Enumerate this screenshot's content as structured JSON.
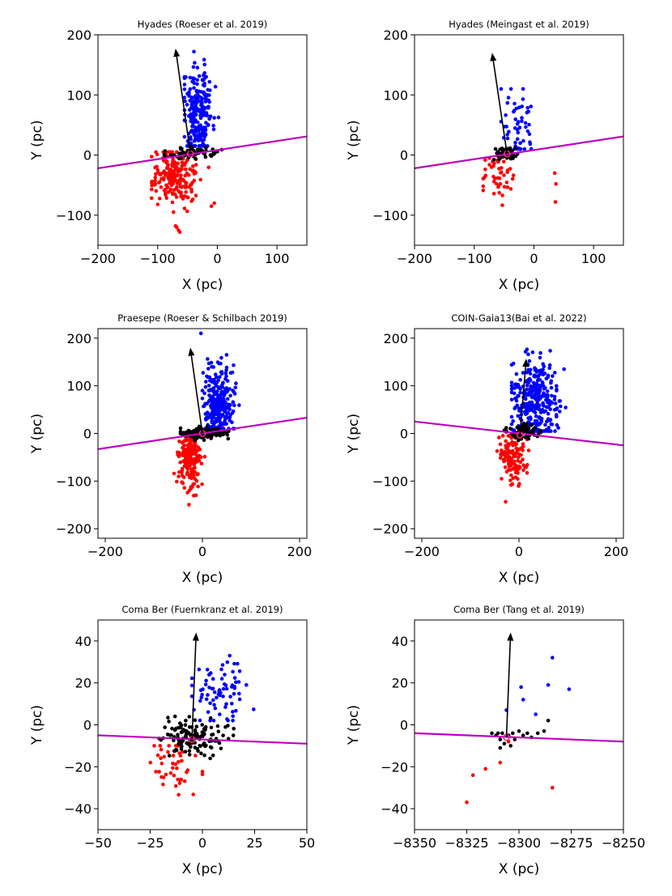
{
  "figure": {
    "colors": {
      "upper": "#0000ff",
      "lower": "#ff0000",
      "core": "#000000",
      "plane_line": "#bf00bf",
      "arrow": "#000000",
      "center_marker": "#e8306e"
    }
  },
  "chart_data": [
    {
      "type": "scatter",
      "title": "Hyades (Roeser et al. 2019)",
      "xlabel": "X (pc)",
      "ylabel": "Y (pc)",
      "xlim": [
        -200,
        150
      ],
      "ylim": [
        -150,
        200
      ],
      "xticks": [
        -200,
        -100,
        0,
        100
      ],
      "yticks": [
        -100,
        0,
        100,
        200
      ],
      "xtick_labels": [
        "−200",
        "−100",
        "0",
        "100"
      ],
      "ytick_labels": [
        "−100",
        "0",
        "100",
        "200"
      ],
      "center": [
        -45,
        2
      ],
      "arrow_tip": [
        -70,
        177
      ],
      "plane_line": {
        "x": [
          -200,
          150
        ],
        "y": [
          -22,
          31
        ]
      },
      "series": [
        {
          "name": "upper",
          "color": "#0000ff",
          "n": 230,
          "x_mean": -32,
          "x_sd": 13,
          "y_mean": 72,
          "y_sd": 38,
          "x_range": [
            -55,
            15
          ],
          "y_range": [
            15,
            172
          ]
        },
        {
          "name": "lower",
          "color": "#ff0000",
          "n": 210,
          "x_mean": -72,
          "x_sd": 18,
          "y_mean": -35,
          "y_sd": 22,
          "x_range": [
            -110,
            -5
          ],
          "y_range": [
            -95,
            5
          ],
          "outliers": [
            [
              -68,
              -120
            ],
            [
              -65,
              -125
            ],
            [
              -70,
              -118
            ],
            [
              -63,
              -128
            ],
            [
              -10,
              -85
            ],
            [
              -5,
              -80
            ]
          ]
        },
        {
          "name": "core",
          "color": "#000000",
          "n": 70,
          "x_mean": -40,
          "x_sd": 20,
          "y_mean": 5,
          "y_sd": 5,
          "x_range": [
            -95,
            15
          ],
          "y_range": [
            -6,
            22
          ]
        }
      ]
    },
    {
      "type": "scatter",
      "title": "Hyades (Meingast et al. 2019)",
      "xlabel": "X (pc)",
      "ylabel": "Y (pc)",
      "xlim": [
        -200,
        150
      ],
      "ylim": [
        -150,
        200
      ],
      "xticks": [
        -200,
        -100,
        0,
        100
      ],
      "yticks": [
        -100,
        0,
        100,
        200
      ],
      "xtick_labels": [
        "−200",
        "−100",
        "0",
        "100"
      ],
      "ytick_labels": [
        "−100",
        "0",
        "100",
        "200"
      ],
      "center": [
        -45,
        2
      ],
      "arrow_tip": [
        -70,
        170
      ],
      "plane_line": {
        "x": [
          -200,
          150
        ],
        "y": [
          -22,
          31
        ]
      },
      "series": [
        {
          "name": "upper",
          "color": "#0000ff",
          "n": 60,
          "x_mean": -28,
          "x_sd": 12,
          "y_mean": 45,
          "y_sd": 30,
          "x_range": [
            -55,
            0
          ],
          "y_range": [
            10,
            110
          ]
        },
        {
          "name": "lower",
          "color": "#ff0000",
          "n": 45,
          "x_mean": -62,
          "x_sd": 14,
          "y_mean": -35,
          "y_sd": 22,
          "x_range": [
            -85,
            -30
          ],
          "y_range": [
            -85,
            -5
          ],
          "outliers": [
            [
              35,
              -30
            ],
            [
              37,
              -48
            ],
            [
              36,
              -78
            ]
          ]
        },
        {
          "name": "core",
          "color": "#000000",
          "n": 60,
          "x_mean": -47,
          "x_sd": 9,
          "y_mean": 3,
          "y_sd": 5,
          "x_range": [
            -70,
            15
          ],
          "y_range": [
            -10,
            18
          ]
        }
      ]
    },
    {
      "type": "scatter",
      "title": "Praesepe (Roeser & Schilbach 2019)",
      "xlabel": "X (pc)",
      "ylabel": "Y (pc)",
      "xlim": [
        -215,
        215
      ],
      "ylim": [
        -220,
        220
      ],
      "xticks": [
        -200,
        0,
        200
      ],
      "yticks": [
        -200,
        -100,
        0,
        100,
        200
      ],
      "xtick_labels": [
        "−200",
        "0",
        "200"
      ],
      "ytick_labels": [
        "−200",
        "−100",
        "0",
        "100",
        "200"
      ],
      "center": [
        0,
        0
      ],
      "arrow_tip": [
        -25,
        180
      ],
      "plane_line": {
        "x": [
          -215,
          215
        ],
        "y": [
          -33,
          33
        ]
      },
      "series": [
        {
          "name": "upper",
          "color": "#0000ff",
          "n": 300,
          "x_mean": 33,
          "x_sd": 14,
          "y_mean": 62,
          "y_sd": 35,
          "x_range": [
            0,
            80
          ],
          "y_range": [
            10,
            165
          ],
          "outliers": [
            [
              -3,
              210
            ]
          ]
        },
        {
          "name": "lower",
          "color": "#ff0000",
          "n": 160,
          "x_mean": -25,
          "x_sd": 12,
          "y_mean": -58,
          "y_sd": 32,
          "x_range": [
            -60,
            5
          ],
          "y_range": [
            -172,
            -5
          ]
        },
        {
          "name": "core",
          "color": "#000000",
          "n": 180,
          "x_mean": 0,
          "x_sd": 22,
          "y_mean": 0,
          "y_sd": 5,
          "x_range": [
            -45,
            60
          ],
          "y_range": [
            -14,
            16
          ]
        }
      ]
    },
    {
      "type": "scatter",
      "title": "COIN-Gaia13(Bai et al. 2022)",
      "xlabel": "X (pc)",
      "ylabel": "Y (pc)",
      "xlim": [
        -215,
        215
      ],
      "ylim": [
        -220,
        220
      ],
      "xticks": [
        -200,
        0,
        200
      ],
      "yticks": [
        -200,
        -100,
        0,
        100,
        200
      ],
      "xtick_labels": [
        "−200",
        "0",
        "200"
      ],
      "ytick_labels": [
        "−200",
        "−100",
        "0",
        "100",
        "200"
      ],
      "center": [
        2,
        -3
      ],
      "arrow_tip": [
        15,
        157
      ],
      "plane_line": {
        "x": [
          -215,
          215
        ],
        "y": [
          25,
          -25
        ]
      },
      "series": [
        {
          "name": "upper",
          "color": "#0000ff",
          "n": 320,
          "x_mean": 35,
          "x_sd": 25,
          "y_mean": 70,
          "y_sd": 42,
          "x_range": [
            -15,
            115
          ],
          "y_range": [
            5,
            205
          ]
        },
        {
          "name": "lower",
          "color": "#ff0000",
          "n": 130,
          "x_mean": -10,
          "x_sd": 14,
          "y_mean": -45,
          "y_sd": 30,
          "x_range": [
            -45,
            20
          ],
          "y_range": [
            -148,
            -5
          ]
        },
        {
          "name": "core",
          "color": "#000000",
          "n": 60,
          "x_mean": 8,
          "x_sd": 16,
          "y_mean": 2,
          "y_sd": 8,
          "x_range": [
            -30,
            45
          ],
          "y_range": [
            -15,
            20
          ]
        }
      ]
    },
    {
      "type": "scatter",
      "title": "Coma Ber (Fuernkranz et al. 2019)",
      "xlabel": "X (pc)",
      "ylabel": "Y (pc)",
      "xlim": [
        -50,
        50
      ],
      "ylim": [
        -50,
        50
      ],
      "xticks": [
        -50,
        -25,
        0,
        25,
        50
      ],
      "yticks": [
        -40,
        -20,
        0,
        20,
        40
      ],
      "xtick_labels": [
        "−50",
        "−25",
        "0",
        "25",
        "50"
      ],
      "ytick_labels": [
        "−40",
        "−20",
        "0",
        "20",
        "40"
      ],
      "center": [
        -5,
        -7
      ],
      "arrow_tip": [
        -3,
        44
      ],
      "plane_line": {
        "x": [
          -50,
          50
        ],
        "y": [
          -5,
          -9
        ]
      },
      "series": [
        {
          "name": "upper",
          "color": "#0000ff",
          "n": 75,
          "x_mean": 8,
          "x_sd": 8,
          "y_mean": 17,
          "y_sd": 8,
          "x_range": [
            -5,
            25
          ],
          "y_range": [
            2,
            33
          ]
        },
        {
          "name": "lower",
          "color": "#ff0000",
          "n": 45,
          "x_mean": -15,
          "x_sd": 6,
          "y_mean": -20,
          "y_sd": 7,
          "x_range": [
            -27,
            0
          ],
          "y_range": [
            -34,
            -10
          ]
        },
        {
          "name": "core",
          "color": "#000000",
          "n": 140,
          "x_mean": -5,
          "x_sd": 8,
          "y_mean": -5,
          "y_sd": 5,
          "x_range": [
            -25,
            15
          ],
          "y_range": [
            -18,
            4
          ]
        }
      ]
    },
    {
      "type": "scatter",
      "title": "Coma Ber (Tang et al. 2019)",
      "xlabel": "X (pc)",
      "ylabel": "Y (pc)",
      "xlim": [
        -8350,
        -8250
      ],
      "ylim": [
        -50,
        50
      ],
      "xticks": [
        -8350,
        -8325,
        -8300,
        -8275,
        -8250
      ],
      "yticks": [
        -40,
        -20,
        0,
        20,
        40
      ],
      "xtick_labels": [
        "−8350",
        "−8325",
        "−8300",
        "−8275",
        "−8250"
      ],
      "ytick_labels": [
        "−40",
        "−20",
        "0",
        "20",
        "40"
      ],
      "center": [
        -8306,
        -6
      ],
      "arrow_tip": [
        -8304,
        44
      ],
      "plane_line": {
        "x": [
          -8350,
          -8250
        ],
        "y": [
          -4,
          -8
        ]
      },
      "series": [
        {
          "name": "upper",
          "color": "#0000ff",
          "points": [
            [
              -8306,
              7
            ],
            [
              -8299,
              18
            ],
            [
              -8298,
              12
            ],
            [
              -8292,
              5
            ],
            [
              -8286,
              19
            ],
            [
              -8284,
              32
            ],
            [
              -8276,
              17
            ]
          ]
        },
        {
          "name": "lower",
          "color": "#ff0000",
          "points": [
            [
              -8325,
              -37
            ],
            [
              -8322,
              -24
            ],
            [
              -8316,
              -21
            ],
            [
              -8309,
              -18
            ],
            [
              -8284,
              -30
            ],
            [
              -8305,
              -8
            ]
          ]
        },
        {
          "name": "core",
          "color": "#000000",
          "points": [
            [
              -8313,
              -4
            ],
            [
              -8311,
              -5
            ],
            [
              -8310,
              -4
            ],
            [
              -8309,
              -7
            ],
            [
              -8308,
              -4
            ],
            [
              -8307,
              -9
            ],
            [
              -8305,
              -5
            ],
            [
              -8304,
              -10
            ],
            [
              -8303,
              -4
            ],
            [
              -8302,
              -7
            ],
            [
              -8300,
              -3
            ],
            [
              -8298,
              -5
            ],
            [
              -8296,
              -4
            ],
            [
              -8294,
              -6
            ],
            [
              -8291,
              -4
            ],
            [
              -8288,
              -3
            ],
            [
              -8286,
              2
            ],
            [
              -8309,
              -11
            ]
          ]
        }
      ]
    }
  ]
}
